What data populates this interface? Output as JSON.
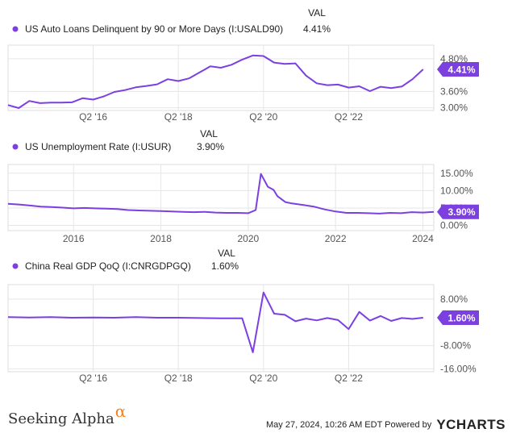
{
  "colors": {
    "line": "#7c3fe0",
    "badge": "#7c3fe0",
    "grid": "#e6e6e6",
    "text": "#222222",
    "axis": "#555555",
    "accent": "#f58220"
  },
  "val_header": "VAL",
  "chart_data": [
    {
      "type": "line",
      "series": [
        {
          "name": "US Auto Loans Delinquent by 90 or More Days (I:USALD90)",
          "value_label": "4.41%"
        }
      ],
      "current_badge": "4.41%",
      "y_tick_labels": [
        "4.80%",
        "3.60%",
        "3.00%"
      ],
      "y_ticks": [
        4.8,
        3.6,
        3.0
      ],
      "x_tick_labels": [
        "Q2 '16",
        "Q2 '18",
        "Q2 '20",
        "Q2 '22"
      ],
      "x_ticks": [
        2016.25,
        2018.25,
        2020.25,
        2022.25
      ],
      "xlim": [
        2014.25,
        2024.25
      ],
      "ylim": [
        2.9,
        5.3
      ],
      "points": [
        [
          2014.25,
          3.1
        ],
        [
          2014.5,
          2.99
        ],
        [
          2014.75,
          3.25
        ],
        [
          2015.0,
          3.17
        ],
        [
          2015.25,
          3.19
        ],
        [
          2015.5,
          3.19
        ],
        [
          2015.75,
          3.2
        ],
        [
          2016.0,
          3.35
        ],
        [
          2016.25,
          3.3
        ],
        [
          2016.5,
          3.42
        ],
        [
          2016.75,
          3.58
        ],
        [
          2017.0,
          3.65
        ],
        [
          2017.25,
          3.75
        ],
        [
          2017.5,
          3.8
        ],
        [
          2017.75,
          3.86
        ],
        [
          2018.0,
          4.05
        ],
        [
          2018.25,
          3.98
        ],
        [
          2018.5,
          4.08
        ],
        [
          2018.75,
          4.3
        ],
        [
          2019.0,
          4.52
        ],
        [
          2019.25,
          4.47
        ],
        [
          2019.5,
          4.58
        ],
        [
          2019.75,
          4.77
        ],
        [
          2020.0,
          4.92
        ],
        [
          2020.25,
          4.9
        ],
        [
          2020.5,
          4.66
        ],
        [
          2020.75,
          4.61
        ],
        [
          2021.0,
          4.63
        ],
        [
          2021.25,
          4.18
        ],
        [
          2021.5,
          3.9
        ],
        [
          2021.75,
          3.83
        ],
        [
          2022.0,
          3.85
        ],
        [
          2022.25,
          3.74
        ],
        [
          2022.5,
          3.79
        ],
        [
          2022.75,
          3.61
        ],
        [
          2023.0,
          3.77
        ],
        [
          2023.25,
          3.72
        ],
        [
          2023.5,
          3.78
        ],
        [
          2023.75,
          4.05
        ],
        [
          2024.0,
          4.41
        ]
      ],
      "grid": true
    },
    {
      "type": "line",
      "series": [
        {
          "name": "US Unemployment Rate (I:USUR)",
          "value_label": "3.90%"
        }
      ],
      "current_badge": "3.90%",
      "y_tick_labels": [
        "15.00%",
        "10.00%",
        "5.00%",
        "0.00%"
      ],
      "y_ticks": [
        15,
        10,
        5,
        0
      ],
      "x_tick_labels": [
        "2016",
        "2018",
        "2020",
        "2022",
        "2024"
      ],
      "x_ticks": [
        2016,
        2018,
        2020,
        2022,
        2024
      ],
      "xlim": [
        2014.5,
        2024.25
      ],
      "ylim": [
        -1.5,
        17.5
      ],
      "points": [
        [
          2014.5,
          6.2
        ],
        [
          2014.75,
          6.0
        ],
        [
          2015.0,
          5.7
        ],
        [
          2015.25,
          5.4
        ],
        [
          2015.5,
          5.3
        ],
        [
          2015.75,
          5.1
        ],
        [
          2016.0,
          4.9
        ],
        [
          2016.25,
          5.0
        ],
        [
          2016.5,
          4.9
        ],
        [
          2016.75,
          4.8
        ],
        [
          2017.0,
          4.7
        ],
        [
          2017.25,
          4.4
        ],
        [
          2017.5,
          4.3
        ],
        [
          2017.75,
          4.2
        ],
        [
          2018.0,
          4.1
        ],
        [
          2018.25,
          4.0
        ],
        [
          2018.5,
          3.9
        ],
        [
          2018.75,
          3.8
        ],
        [
          2019.0,
          3.9
        ],
        [
          2019.25,
          3.7
        ],
        [
          2019.5,
          3.6
        ],
        [
          2019.75,
          3.6
        ],
        [
          2020.0,
          3.5
        ],
        [
          2020.17,
          4.4
        ],
        [
          2020.29,
          14.8
        ],
        [
          2020.45,
          11.1
        ],
        [
          2020.58,
          10.2
        ],
        [
          2020.67,
          8.4
        ],
        [
          2020.85,
          6.7
        ],
        [
          2021.0,
          6.3
        ],
        [
          2021.25,
          5.9
        ],
        [
          2021.5,
          5.4
        ],
        [
          2021.75,
          4.6
        ],
        [
          2022.0,
          4.0
        ],
        [
          2022.25,
          3.6
        ],
        [
          2022.5,
          3.6
        ],
        [
          2022.75,
          3.5
        ],
        [
          2023.0,
          3.4
        ],
        [
          2023.25,
          3.6
        ],
        [
          2023.5,
          3.5
        ],
        [
          2023.75,
          3.8
        ],
        [
          2024.0,
          3.7
        ],
        [
          2024.25,
          3.9
        ]
      ],
      "grid": true
    },
    {
      "type": "line",
      "series": [
        {
          "name": "China Real GDP QoQ (I:CNRGDPGQ)",
          "value_label": "1.60%"
        }
      ],
      "current_badge": "1.60%",
      "y_tick_labels": [
        "8.00%",
        "-8.00%",
        "-16.00%"
      ],
      "y_ticks": [
        8,
        -8,
        -16
      ],
      "x_tick_labels": [
        "Q2 '16",
        "Q2 '18",
        "Q2 '20",
        "Q2 '22"
      ],
      "x_ticks": [
        2016.25,
        2018.25,
        2020.25,
        2022.25
      ],
      "xlim": [
        2014.25,
        2024.25
      ],
      "ylim": [
        -17,
        13
      ],
      "points": [
        [
          2014.25,
          1.8
        ],
        [
          2014.75,
          1.7
        ],
        [
          2015.25,
          1.8
        ],
        [
          2015.75,
          1.6
        ],
        [
          2016.25,
          1.7
        ],
        [
          2016.75,
          1.6
        ],
        [
          2017.25,
          1.8
        ],
        [
          2017.75,
          1.6
        ],
        [
          2018.25,
          1.6
        ],
        [
          2018.75,
          1.5
        ],
        [
          2019.25,
          1.4
        ],
        [
          2019.75,
          1.4
        ],
        [
          2020.0,
          -10.3
        ],
        [
          2020.25,
          10.3
        ],
        [
          2020.5,
          3.0
        ],
        [
          2020.75,
          2.6
        ],
        [
          2021.0,
          0.4
        ],
        [
          2021.25,
          1.3
        ],
        [
          2021.5,
          0.7
        ],
        [
          2021.75,
          1.5
        ],
        [
          2022.0,
          0.8
        ],
        [
          2022.25,
          -2.3
        ],
        [
          2022.5,
          3.6
        ],
        [
          2022.75,
          0.6
        ],
        [
          2023.0,
          2.2
        ],
        [
          2023.25,
          0.5
        ],
        [
          2023.5,
          1.5
        ],
        [
          2023.75,
          1.2
        ],
        [
          2024.0,
          1.6
        ]
      ],
      "grid": true
    }
  ],
  "footer": {
    "brand": "Seeking Alpha",
    "brand_mark": "α",
    "timestamp": "May 27, 2024, 10:26 AM EDT  Powered by",
    "ycharts_y": "Y",
    "ycharts_rest": "CHARTS"
  }
}
